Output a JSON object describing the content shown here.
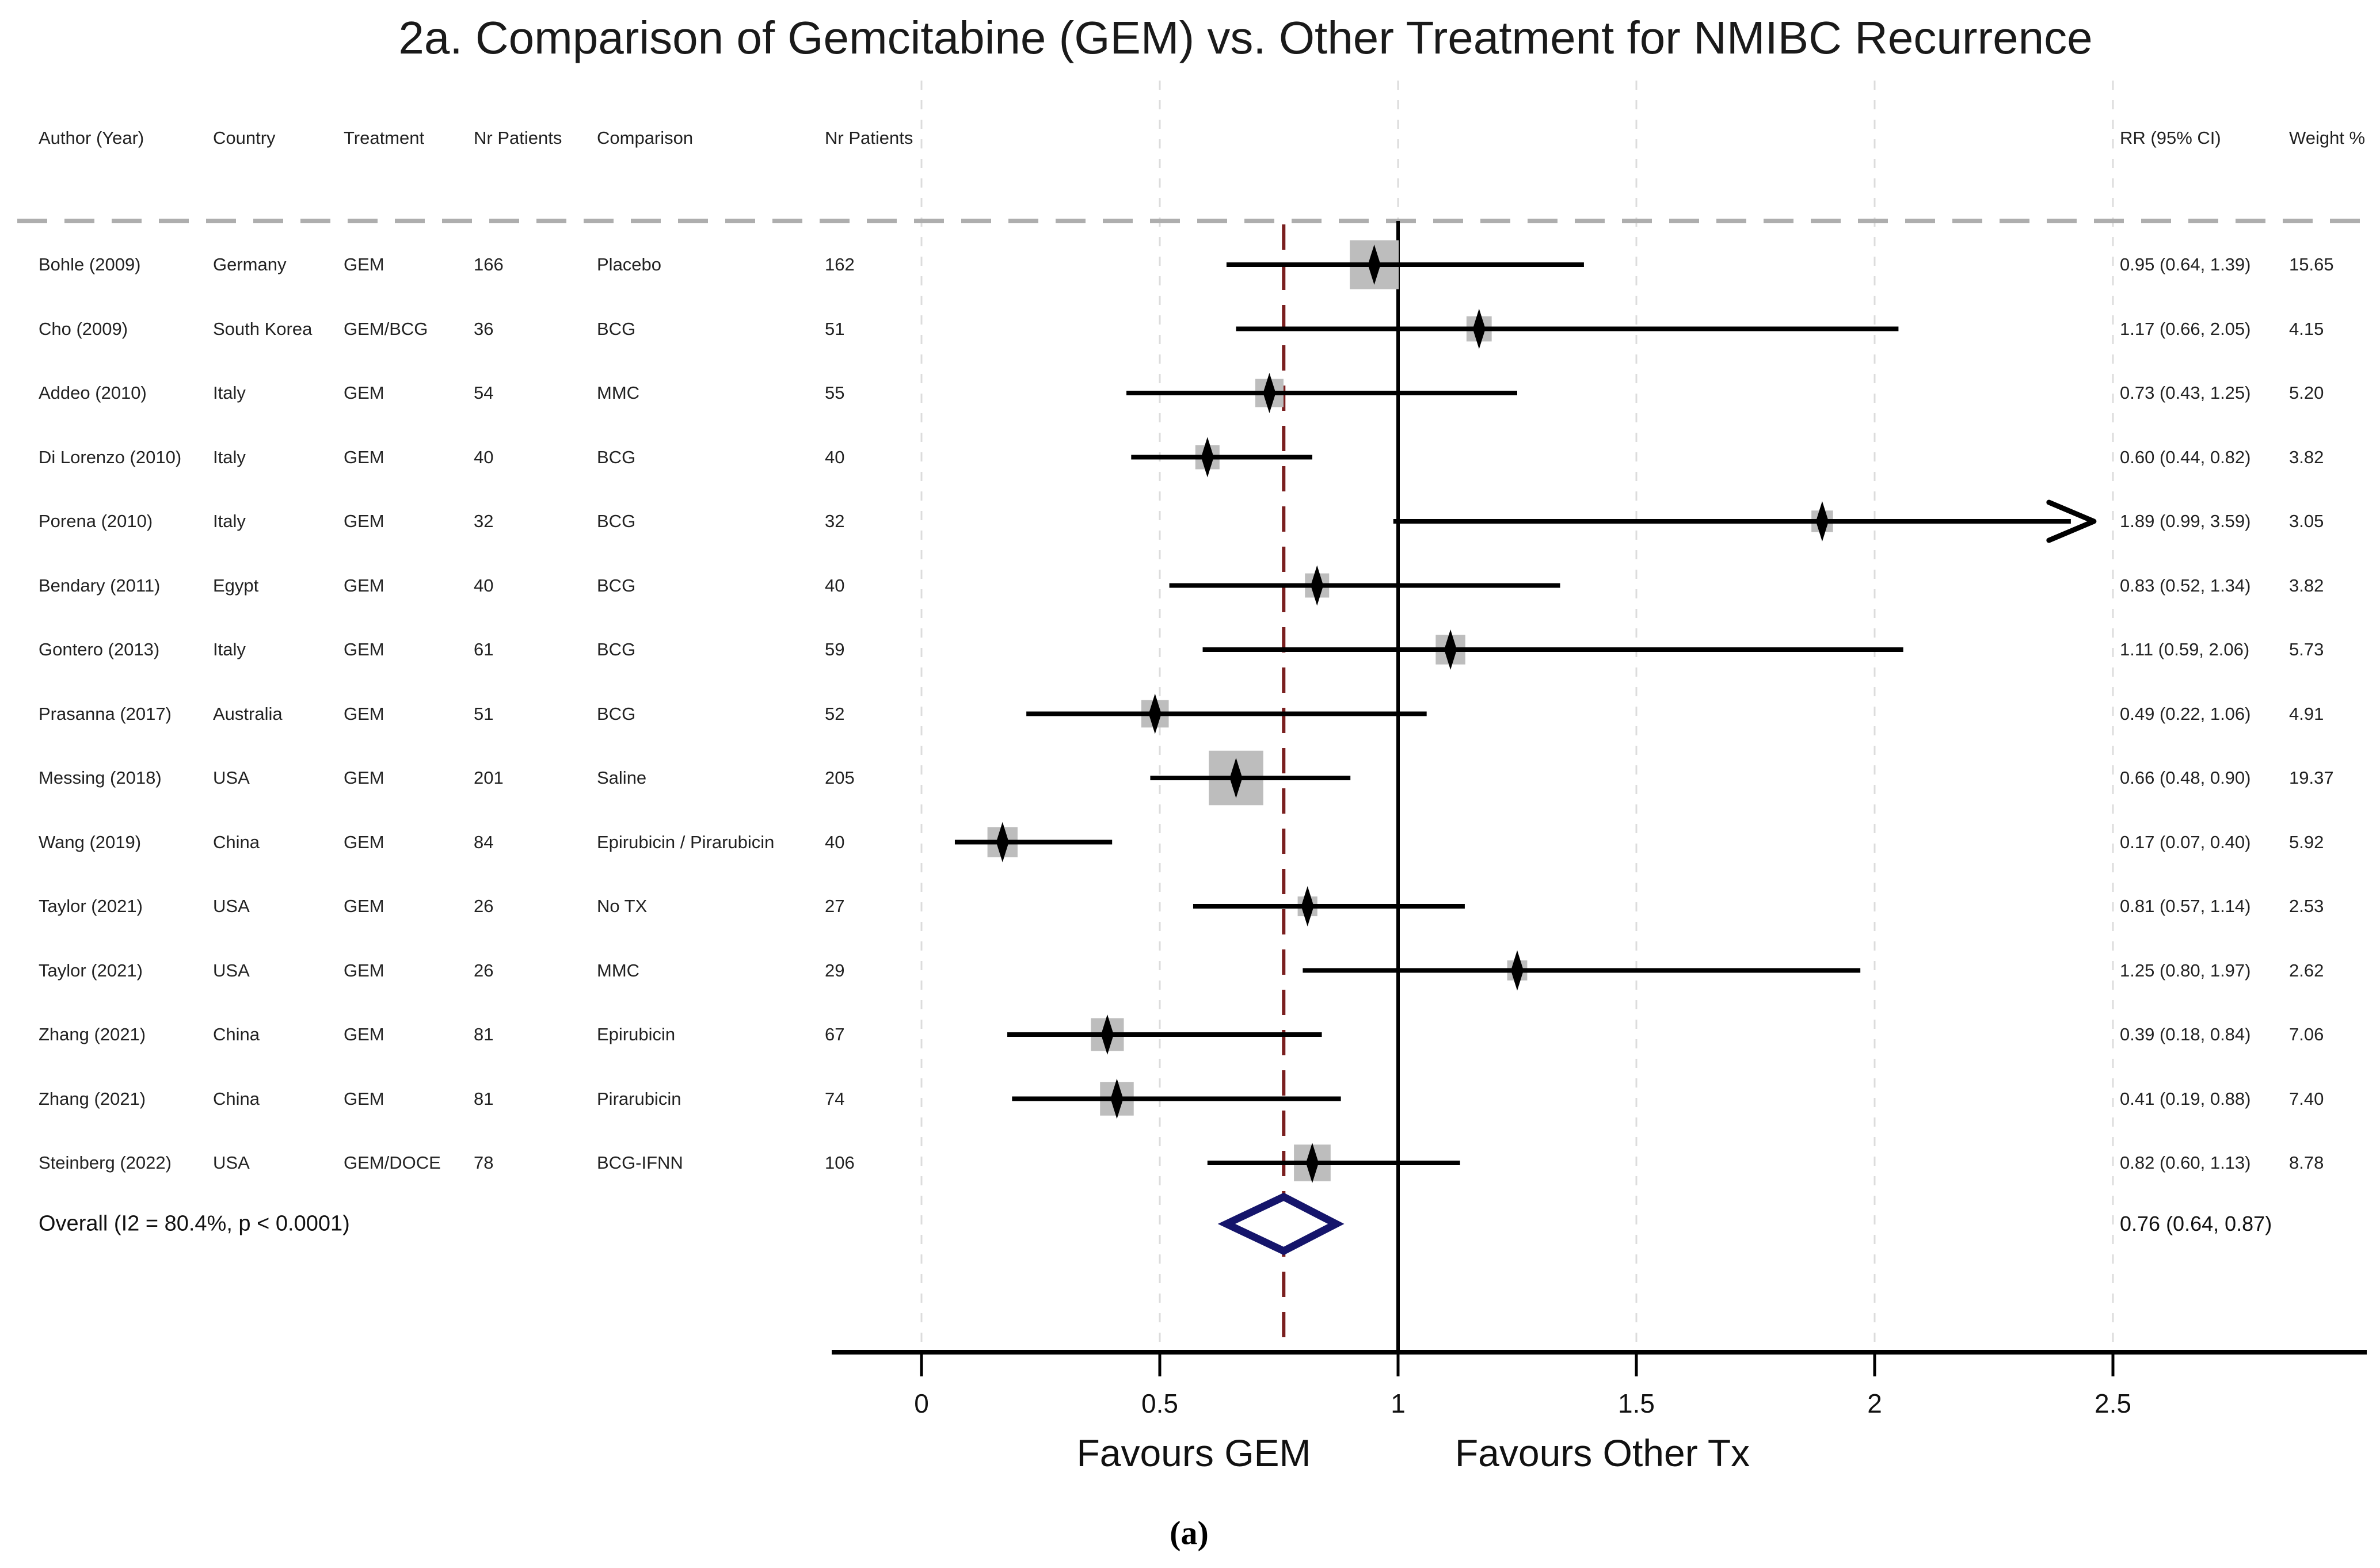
{
  "title": "2a. Comparison of Gemcitabine (GEM) vs. Other Treatment for NMIBC Recurrence",
  "caption": "(a)",
  "chart_data": {
    "type": "forest",
    "columns": {
      "author": "Author (Year)",
      "country": "Country",
      "treatment": "Treatment",
      "n_treatment": "Nr Patients",
      "comparison": "Comparison",
      "n_comparison": "Nr Patients",
      "rr_ci": "RR (95% CI)",
      "weight": "Weight %"
    },
    "studies": [
      {
        "author": "Bohle (2009)",
        "country": "Germany",
        "treatment": "GEM",
        "n_treatment": "166",
        "comparison": "Placebo",
        "n_comparison": "162",
        "rr": 0.95,
        "ci_low": 0.64,
        "ci_high": 1.39,
        "weight": 15.65,
        "rr_ci_text": "0.95 (0.64, 1.39)",
        "weight_text": "15.65",
        "arrow": false
      },
      {
        "author": "Cho (2009)",
        "country": "South Korea",
        "treatment": "GEM/BCG",
        "n_treatment": "36",
        "comparison": "BCG",
        "n_comparison": "51",
        "rr": 1.17,
        "ci_low": 0.66,
        "ci_high": 2.05,
        "weight": 4.15,
        "rr_ci_text": "1.17 (0.66, 2.05)",
        "weight_text": "4.15",
        "arrow": false
      },
      {
        "author": "Addeo (2010)",
        "country": "Italy",
        "treatment": "GEM",
        "n_treatment": "54",
        "comparison": "MMC",
        "n_comparison": "55",
        "rr": 0.73,
        "ci_low": 0.43,
        "ci_high": 1.25,
        "weight": 5.2,
        "rr_ci_text": "0.73 (0.43, 1.25)",
        "weight_text": "5.20",
        "arrow": false
      },
      {
        "author": "Di Lorenzo (2010)",
        "country": "Italy",
        "treatment": "GEM",
        "n_treatment": "40",
        "comparison": "BCG",
        "n_comparison": "40",
        "rr": 0.6,
        "ci_low": 0.44,
        "ci_high": 0.82,
        "weight": 3.82,
        "rr_ci_text": "0.60 (0.44, 0.82)",
        "weight_text": "3.82",
        "arrow": false
      },
      {
        "author": "Porena (2010)",
        "country": "Italy",
        "treatment": "GEM",
        "n_treatment": "32",
        "comparison": "BCG",
        "n_comparison": "32",
        "rr": 1.89,
        "ci_low": 0.99,
        "ci_high": 3.59,
        "weight": 3.05,
        "rr_ci_text": "1.89 (0.99, 3.59)",
        "weight_text": "3.05",
        "arrow": true
      },
      {
        "author": "Bendary (2011)",
        "country": "Egypt",
        "treatment": "GEM",
        "n_treatment": "40",
        "comparison": "BCG",
        "n_comparison": "40",
        "rr": 0.83,
        "ci_low": 0.52,
        "ci_high": 1.34,
        "weight": 3.82,
        "rr_ci_text": "0.83 (0.52, 1.34)",
        "weight_text": "3.82",
        "arrow": false
      },
      {
        "author": "Gontero (2013)",
        "country": "Italy",
        "treatment": "GEM",
        "n_treatment": "61",
        "comparison": "BCG",
        "n_comparison": "59",
        "rr": 1.11,
        "ci_low": 0.59,
        "ci_high": 2.06,
        "weight": 5.73,
        "rr_ci_text": "1.11 (0.59, 2.06)",
        "weight_text": "5.73",
        "arrow": false
      },
      {
        "author": "Prasanna (2017)",
        "country": "Australia",
        "treatment": "GEM",
        "n_treatment": "51",
        "comparison": "BCG",
        "n_comparison": "52",
        "rr": 0.49,
        "ci_low": 0.22,
        "ci_high": 1.06,
        "weight": 4.91,
        "rr_ci_text": "0.49 (0.22, 1.06)",
        "weight_text": "4.91",
        "arrow": false
      },
      {
        "author": "Messing (2018)",
        "country": "USA",
        "treatment": "GEM",
        "n_treatment": "201",
        "comparison": "Saline",
        "n_comparison": "205",
        "rr": 0.66,
        "ci_low": 0.48,
        "ci_high": 0.9,
        "weight": 19.37,
        "rr_ci_text": "0.66 (0.48, 0.90)",
        "weight_text": "19.37",
        "arrow": false
      },
      {
        "author": "Wang (2019)",
        "country": "China",
        "treatment": "GEM",
        "n_treatment": "84",
        "comparison": "Epirubicin / Pirarubicin",
        "n_comparison": "40",
        "rr": 0.17,
        "ci_low": 0.07,
        "ci_high": 0.4,
        "weight": 5.92,
        "rr_ci_text": "0.17 (0.07, 0.40)",
        "weight_text": "5.92",
        "arrow": false
      },
      {
        "author": "Taylor (2021)",
        "country": "USA",
        "treatment": "GEM",
        "n_treatment": "26",
        "comparison": "No TX",
        "n_comparison": "27",
        "rr": 0.81,
        "ci_low": 0.57,
        "ci_high": 1.14,
        "weight": 2.53,
        "rr_ci_text": "0.81 (0.57, 1.14)",
        "weight_text": "2.53",
        "arrow": false
      },
      {
        "author": "Taylor (2021)",
        "country": "USA",
        "treatment": "GEM",
        "n_treatment": "26",
        "comparison": "MMC",
        "n_comparison": "29",
        "rr": 1.25,
        "ci_low": 0.8,
        "ci_high": 1.97,
        "weight": 2.62,
        "rr_ci_text": "1.25 (0.80, 1.97)",
        "weight_text": "2.62",
        "arrow": false
      },
      {
        "author": "Zhang (2021)",
        "country": "China",
        "treatment": "GEM",
        "n_treatment": "81",
        "comparison": "Epirubicin",
        "n_comparison": "67",
        "rr": 0.39,
        "ci_low": 0.18,
        "ci_high": 0.84,
        "weight": 7.06,
        "rr_ci_text": "0.39 (0.18, 0.84)",
        "weight_text": "7.06",
        "arrow": false
      },
      {
        "author": "Zhang (2021)",
        "country": "China",
        "treatment": "GEM",
        "n_treatment": "81",
        "comparison": "Pirarubicin",
        "n_comparison": "74",
        "rr": 0.41,
        "ci_low": 0.19,
        "ci_high": 0.88,
        "weight": 7.4,
        "rr_ci_text": "0.41 (0.19, 0.88)",
        "weight_text": "7.40",
        "arrow": false
      },
      {
        "author": "Steinberg (2022)",
        "country": "USA",
        "treatment": "GEM/DOCE",
        "n_treatment": "78",
        "comparison": "BCG-IFNN",
        "n_comparison": "106",
        "rr": 0.82,
        "ci_low": 0.6,
        "ci_high": 1.13,
        "weight": 8.78,
        "rr_ci_text": "0.82 (0.60, 1.13)",
        "weight_text": "8.78",
        "arrow": false
      }
    ],
    "overall": {
      "label": "Overall  (I2 = 80.4%, p < 0.0001)",
      "rr": 0.76,
      "ci_low": 0.64,
      "ci_high": 0.87,
      "rr_ci_text": "0.76 (0.64, 0.87)"
    },
    "axis": {
      "ticks": [
        0,
        0.5,
        1,
        1.5,
        2,
        2.5
      ],
      "tick_labels": [
        "0",
        "0.5",
        "1",
        "1.5",
        "2",
        "2.5"
      ],
      "xmin": 0,
      "clip_max": 2.46,
      "reference_line": 1,
      "pooled_line": 0.76,
      "grid": true
    },
    "x_labels": {
      "left": "Favours GEM",
      "right": "Favours Other Tx"
    },
    "colors": {
      "marker": "#000000",
      "ci_line": "#000000",
      "weight_square": "#bdbdbd",
      "reference_line": "#000000",
      "pooled_line": "#7a1f1f",
      "gridline": "#dcdcdc",
      "separator": "#aeaeae",
      "overall_diamond_outline": "#15156b",
      "axis": "#000000"
    }
  }
}
